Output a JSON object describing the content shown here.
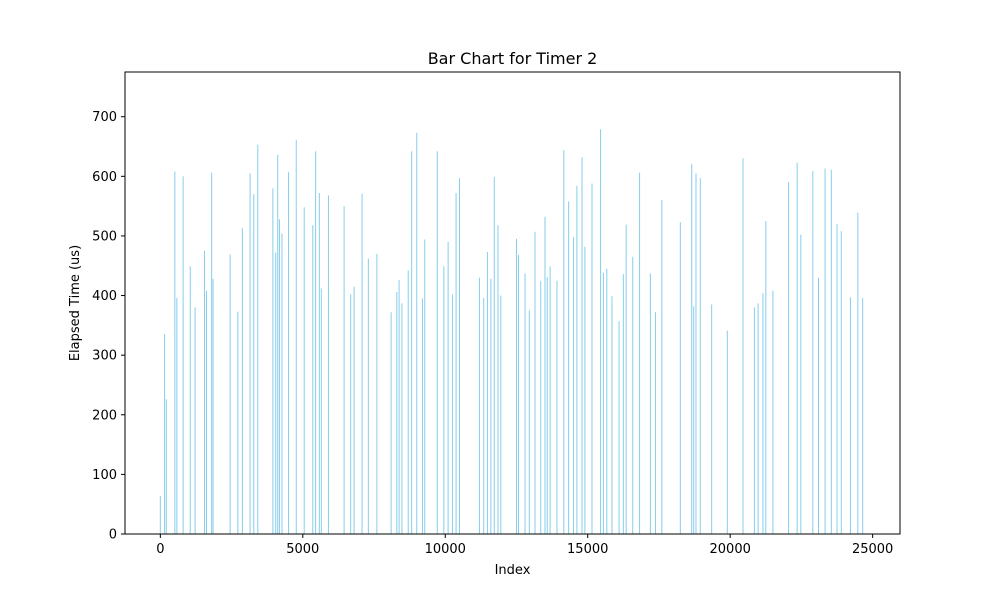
{
  "chart_data": {
    "type": "bar",
    "title": "Bar Chart for Timer 2",
    "xlabel": "Index",
    "ylabel": "Elapsed Time (us)",
    "xlim": [
      -1240,
      25960
    ],
    "ylim": [
      0,
      775
    ],
    "xticks": [
      0,
      5000,
      10000,
      15000,
      20000,
      25000
    ],
    "yticks": [
      0,
      100,
      200,
      300,
      400,
      500,
      600,
      700
    ],
    "grid": false,
    "bar_color": "#87ceeb",
    "x": [
      0,
      150,
      210,
      510,
      580,
      800,
      1050,
      1220,
      1550,
      1620,
      1800,
      1850,
      2450,
      2720,
      2880,
      3150,
      3280,
      3420,
      3950,
      4050,
      4120,
      4180,
      4270,
      4500,
      4770,
      5050,
      5350,
      5450,
      5580,
      5650,
      5900,
      6450,
      6680,
      6800,
      7080,
      7300,
      7600,
      8100,
      8300,
      8380,
      8480,
      8700,
      8820,
      9000,
      9200,
      9280,
      9720,
      9950,
      10100,
      10250,
      10380,
      10500,
      11200,
      11350,
      11480,
      11600,
      11720,
      11850,
      11950,
      12500,
      12570,
      12800,
      12950,
      13150,
      13350,
      13500,
      13580,
      13680,
      13920,
      14160,
      14330,
      14500,
      14620,
      14800,
      14900,
      15150,
      15450,
      15550,
      15670,
      15850,
      16100,
      16250,
      16350,
      16580,
      16820,
      17200,
      17380,
      17600,
      18250,
      18650,
      18720,
      18800,
      18950,
      19350,
      19900,
      20450,
      20850,
      20980,
      21150,
      21250,
      21500,
      22050,
      22350,
      22480,
      22900,
      23100,
      23330,
      23550,
      23750,
      23900,
      24220,
      24480,
      24650
    ],
    "values": [
      64,
      335,
      226,
      608,
      396,
      600,
      449,
      380,
      475,
      408,
      606,
      428,
      469,
      373,
      513,
      605,
      570,
      653,
      580,
      472,
      636,
      528,
      504,
      607,
      661,
      548,
      518,
      642,
      572,
      412,
      568,
      550,
      402,
      415,
      571,
      462,
      470,
      372,
      406,
      426,
      387,
      442,
      642,
      673,
      395,
      494,
      642,
      449,
      490,
      402,
      572,
      597,
      430,
      396,
      473,
      428,
      599,
      518,
      400,
      495,
      468,
      437,
      375,
      507,
      424,
      532,
      431,
      449,
      425,
      644,
      558,
      498,
      584,
      632,
      482,
      588,
      679,
      438,
      445,
      399,
      357,
      436,
      519,
      465,
      606,
      437,
      372,
      560,
      523,
      621,
      382,
      605,
      597,
      385,
      341,
      630,
      380,
      387,
      404,
      525,
      408,
      590,
      623,
      502,
      609,
      430,
      613,
      611,
      520,
      508,
      397,
      539,
      396
    ]
  }
}
